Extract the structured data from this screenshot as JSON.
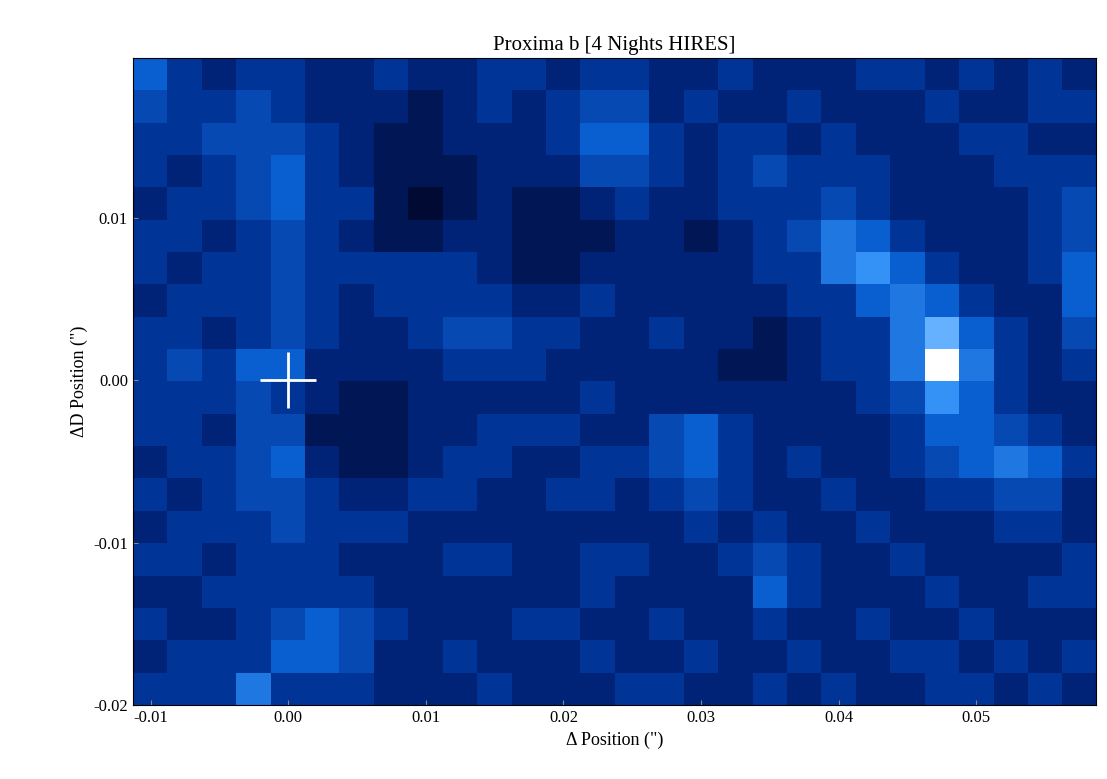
{
  "chart_data": {
    "type": "heatmap",
    "title": "Proxima b [4 Nights HIRES]",
    "x_label": "Δ Position (\")",
    "y_label": "ΔD Position (\")",
    "xlim": [
      -0.0113,
      0.0587
    ],
    "ylim": [
      -0.02,
      0.0198
    ],
    "xticks": [
      -0.01,
      {
        "value": 0.0,
        "label": "0.00"
      },
      0.01,
      0.02,
      0.03,
      0.04,
      0.05
    ],
    "yticks": [
      -0.02,
      -0.01,
      {
        "value": 0.0,
        "label": "0.00"
      },
      0.01
    ],
    "color_range": [
      0,
      1
    ],
    "marker_point": {
      "x": 0.0,
      "y": 0.0
    },
    "marker": "plus",
    "color": "#ffffff",
    "cells": [
      [
        0.5,
        0.3,
        0.2,
        0.3,
        0.3,
        0.2,
        0.2,
        0.3,
        0.2,
        0.2,
        0.3,
        0.3,
        0.2,
        0.3,
        0.3,
        0.2,
        0.2,
        0.3,
        0.2,
        0.2,
        0.2,
        0.3,
        0.3,
        0.2,
        0.3,
        0.2,
        0.3,
        0.2
      ],
      [
        0.4,
        0.3,
        0.3,
        0.4,
        0.3,
        0.2,
        0.2,
        0.2,
        0.1,
        0.2,
        0.3,
        0.2,
        0.3,
        0.4,
        0.4,
        0.2,
        0.3,
        0.2,
        0.2,
        0.3,
        0.2,
        0.2,
        0.2,
        0.3,
        0.2,
        0.2,
        0.3,
        0.3
      ],
      [
        0.3,
        0.3,
        0.4,
        0.4,
        0.4,
        0.3,
        0.2,
        0.1,
        0.1,
        0.2,
        0.2,
        0.2,
        0.3,
        0.5,
        0.5,
        0.3,
        0.2,
        0.3,
        0.3,
        0.2,
        0.3,
        0.2,
        0.2,
        0.2,
        0.3,
        0.3,
        0.2,
        0.2
      ],
      [
        0.3,
        0.2,
        0.3,
        0.4,
        0.5,
        0.3,
        0.2,
        0.1,
        0.1,
        0.1,
        0.2,
        0.2,
        0.2,
        0.4,
        0.4,
        0.3,
        0.2,
        0.3,
        0.4,
        0.3,
        0.3,
        0.3,
        0.2,
        0.2,
        0.2,
        0.3,
        0.3,
        0.3
      ],
      [
        0.2,
        0.3,
        0.3,
        0.4,
        0.5,
        0.3,
        0.3,
        0.1,
        0.0,
        0.1,
        0.2,
        0.1,
        0.1,
        0.2,
        0.3,
        0.2,
        0.2,
        0.3,
        0.3,
        0.3,
        0.4,
        0.3,
        0.2,
        0.2,
        0.2,
        0.2,
        0.3,
        0.4
      ],
      [
        0.3,
        0.3,
        0.2,
        0.3,
        0.4,
        0.3,
        0.2,
        0.1,
        0.1,
        0.2,
        0.2,
        0.1,
        0.1,
        0.1,
        0.2,
        0.2,
        0.1,
        0.2,
        0.3,
        0.4,
        0.6,
        0.5,
        0.3,
        0.2,
        0.2,
        0.2,
        0.3,
        0.4
      ],
      [
        0.3,
        0.2,
        0.3,
        0.3,
        0.4,
        0.3,
        0.3,
        0.3,
        0.3,
        0.3,
        0.2,
        0.1,
        0.1,
        0.2,
        0.2,
        0.2,
        0.2,
        0.2,
        0.3,
        0.3,
        0.6,
        0.7,
        0.5,
        0.3,
        0.2,
        0.2,
        0.3,
        0.5
      ],
      [
        0.2,
        0.3,
        0.3,
        0.3,
        0.4,
        0.3,
        0.2,
        0.3,
        0.3,
        0.3,
        0.3,
        0.2,
        0.2,
        0.3,
        0.2,
        0.2,
        0.2,
        0.2,
        0.2,
        0.3,
        0.3,
        0.5,
        0.6,
        0.5,
        0.3,
        0.2,
        0.2,
        0.5
      ],
      [
        0.3,
        0.3,
        0.2,
        0.3,
        0.4,
        0.3,
        0.2,
        0.2,
        0.3,
        0.4,
        0.4,
        0.3,
        0.3,
        0.2,
        0.2,
        0.3,
        0.2,
        0.2,
        0.1,
        0.2,
        0.3,
        0.3,
        0.6,
        0.8,
        0.5,
        0.3,
        0.2,
        0.4
      ],
      [
        0.3,
        0.4,
        0.3,
        0.5,
        0.5,
        0.2,
        0.2,
        0.2,
        0.2,
        0.3,
        0.3,
        0.3,
        0.2,
        0.2,
        0.2,
        0.2,
        0.2,
        0.1,
        0.1,
        0.2,
        0.3,
        0.3,
        0.6,
        1.0,
        0.6,
        0.3,
        0.2,
        0.3
      ],
      [
        0.3,
        0.3,
        0.3,
        0.4,
        0.3,
        0.2,
        0.1,
        0.1,
        0.2,
        0.2,
        0.2,
        0.2,
        0.2,
        0.3,
        0.2,
        0.2,
        0.2,
        0.2,
        0.2,
        0.2,
        0.2,
        0.3,
        0.4,
        0.7,
        0.5,
        0.3,
        0.2,
        0.2
      ],
      [
        0.3,
        0.3,
        0.2,
        0.4,
        0.4,
        0.1,
        0.1,
        0.1,
        0.2,
        0.2,
        0.3,
        0.3,
        0.3,
        0.2,
        0.2,
        0.4,
        0.5,
        0.3,
        0.2,
        0.2,
        0.2,
        0.2,
        0.3,
        0.5,
        0.5,
        0.4,
        0.3,
        0.2
      ],
      [
        0.2,
        0.3,
        0.3,
        0.4,
        0.5,
        0.2,
        0.1,
        0.1,
        0.2,
        0.3,
        0.3,
        0.2,
        0.2,
        0.3,
        0.3,
        0.4,
        0.5,
        0.3,
        0.2,
        0.3,
        0.2,
        0.2,
        0.3,
        0.4,
        0.5,
        0.6,
        0.5,
        0.3
      ],
      [
        0.3,
        0.2,
        0.3,
        0.4,
        0.4,
        0.3,
        0.2,
        0.2,
        0.3,
        0.3,
        0.2,
        0.2,
        0.3,
        0.3,
        0.2,
        0.3,
        0.4,
        0.3,
        0.2,
        0.2,
        0.3,
        0.2,
        0.2,
        0.3,
        0.3,
        0.4,
        0.4,
        0.2
      ],
      [
        0.2,
        0.3,
        0.3,
        0.3,
        0.4,
        0.3,
        0.3,
        0.3,
        0.2,
        0.2,
        0.2,
        0.2,
        0.2,
        0.2,
        0.2,
        0.2,
        0.3,
        0.2,
        0.3,
        0.2,
        0.2,
        0.3,
        0.2,
        0.2,
        0.2,
        0.3,
        0.3,
        0.2
      ],
      [
        0.3,
        0.3,
        0.2,
        0.3,
        0.3,
        0.3,
        0.2,
        0.2,
        0.2,
        0.3,
        0.3,
        0.2,
        0.2,
        0.3,
        0.3,
        0.2,
        0.2,
        0.3,
        0.4,
        0.3,
        0.2,
        0.2,
        0.3,
        0.2,
        0.2,
        0.2,
        0.2,
        0.3
      ],
      [
        0.2,
        0.2,
        0.3,
        0.3,
        0.3,
        0.3,
        0.3,
        0.2,
        0.2,
        0.2,
        0.2,
        0.2,
        0.2,
        0.3,
        0.2,
        0.2,
        0.2,
        0.2,
        0.5,
        0.3,
        0.2,
        0.2,
        0.2,
        0.3,
        0.2,
        0.2,
        0.3,
        0.3
      ],
      [
        0.3,
        0.2,
        0.2,
        0.3,
        0.4,
        0.5,
        0.4,
        0.3,
        0.2,
        0.2,
        0.2,
        0.3,
        0.3,
        0.2,
        0.2,
        0.3,
        0.2,
        0.2,
        0.3,
        0.2,
        0.2,
        0.3,
        0.2,
        0.2,
        0.3,
        0.2,
        0.2,
        0.2
      ],
      [
        0.2,
        0.3,
        0.3,
        0.3,
        0.5,
        0.5,
        0.4,
        0.2,
        0.2,
        0.3,
        0.2,
        0.2,
        0.2,
        0.3,
        0.2,
        0.2,
        0.3,
        0.2,
        0.2,
        0.3,
        0.2,
        0.2,
        0.3,
        0.3,
        0.2,
        0.3,
        0.2,
        0.3
      ],
      [
        0.3,
        0.3,
        0.3,
        0.6,
        0.3,
        0.3,
        0.3,
        0.2,
        0.2,
        0.2,
        0.3,
        0.2,
        0.2,
        0.2,
        0.3,
        0.3,
        0.2,
        0.2,
        0.3,
        0.2,
        0.3,
        0.2,
        0.2,
        0.3,
        0.3,
        0.2,
        0.3,
        0.2
      ]
    ]
  }
}
